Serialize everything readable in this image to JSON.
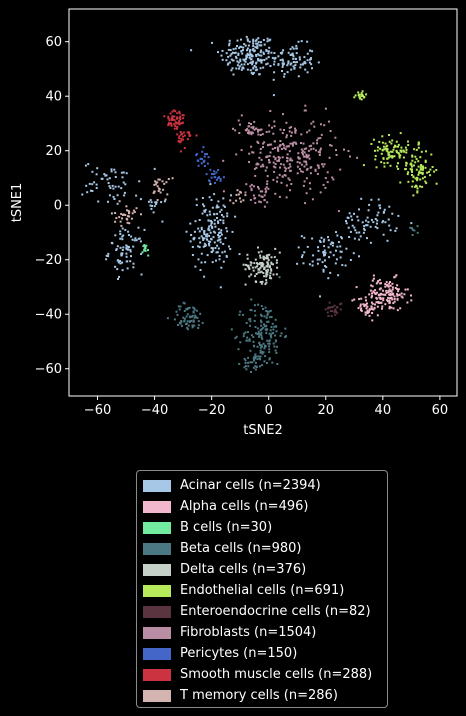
{
  "chart_data": {
    "type": "scatter",
    "title": "",
    "xlabel": "tSNE2",
    "ylabel": "tSNE1",
    "xlim": [
      -70,
      66
    ],
    "ylim": [
      -70,
      72
    ],
    "xticks": [
      -60,
      -40,
      -20,
      0,
      20,
      40,
      60
    ],
    "yticks": [
      -60,
      -40,
      -20,
      0,
      20,
      40,
      60
    ],
    "legend_position": "below plot",
    "series": [
      {
        "name": "Acinar cells (n=2394)",
        "color": "#a6c8e6",
        "clusters": [
          {
            "cx": -7,
            "cy": 55,
            "sx": 5,
            "sy": 4,
            "n": 170
          },
          {
            "cx": 8,
            "cy": 53,
            "sx": 4,
            "sy": 3,
            "n": 90
          },
          {
            "cx": -20,
            "cy": -10,
            "sx": 3.5,
            "sy": 7,
            "n": 160
          },
          {
            "cx": -50,
            "cy": -17,
            "sx": 3,
            "sy": 4,
            "n": 70
          },
          {
            "cx": -55,
            "cy": 8,
            "sx": 5,
            "sy": 4,
            "n": 55
          },
          {
            "cx": 35,
            "cy": -6,
            "sx": 5,
            "sy": 4,
            "n": 70
          },
          {
            "cx": 20,
            "cy": -18,
            "sx": 4,
            "sy": 4,
            "n": 70
          },
          {
            "cx": -40,
            "cy": 0,
            "sx": 2,
            "sy": 2,
            "n": 15
          }
        ]
      },
      {
        "name": "Alpha cells (n=496)",
        "color": "#f2b7cc",
        "clusters": [
          {
            "cx": 41,
            "cy": -33,
            "sx": 4,
            "sy": 3,
            "n": 130
          },
          {
            "cx": 34,
            "cy": -37,
            "sx": 2.5,
            "sy": 2,
            "n": 40
          }
        ]
      },
      {
        "name": "B cells (n=30)",
        "color": "#72eaa0",
        "clusters": [
          {
            "cx": -43,
            "cy": -16,
            "sx": 0.6,
            "sy": 1.2,
            "n": 12
          }
        ]
      },
      {
        "name": "Beta cells (n=980)",
        "color": "#4b7882",
        "clusters": [
          {
            "cx": -2,
            "cy": -47,
            "sx": 3.5,
            "sy": 6,
            "n": 150
          },
          {
            "cx": -28,
            "cy": -41,
            "sx": 3,
            "sy": 2.5,
            "n": 60
          },
          {
            "cx": -5,
            "cy": -58,
            "sx": 2,
            "sy": 1.5,
            "n": 30
          },
          {
            "cx": 51,
            "cy": -9,
            "sx": 1,
            "sy": 1,
            "n": 8
          }
        ]
      },
      {
        "name": "Delta cells (n=376)",
        "color": "#c4d0c8",
        "clusters": [
          {
            "cx": -2,
            "cy": -22,
            "sx": 3,
            "sy": 3,
            "n": 110
          }
        ]
      },
      {
        "name": "Endothelial cells (n=691)",
        "color": "#b6ea5a",
        "clusters": [
          {
            "cx": 43,
            "cy": 20,
            "sx": 3,
            "sy": 2.5,
            "n": 80
          },
          {
            "cx": 52,
            "cy": 13,
            "sx": 3,
            "sy": 4,
            "n": 90
          },
          {
            "cx": 32,
            "cy": 40,
            "sx": 1.2,
            "sy": 1,
            "n": 20
          }
        ]
      },
      {
        "name": "Enteroendocrine cells (n=82)",
        "color": "#5a3540",
        "clusters": [
          {
            "cx": 23,
            "cy": -38,
            "sx": 1.5,
            "sy": 1.5,
            "n": 25
          }
        ]
      },
      {
        "name": "Fibroblasts (n=1504)",
        "color": "#b98da4",
        "clusters": [
          {
            "cx": 8,
            "cy": 18,
            "sx": 8,
            "sy": 7,
            "n": 260
          },
          {
            "cx": -6,
            "cy": 28,
            "sx": 3,
            "sy": 2,
            "n": 40
          },
          {
            "cx": -4,
            "cy": 4,
            "sx": 2,
            "sy": 2,
            "n": 25
          }
        ]
      },
      {
        "name": "Pericytes (n=150)",
        "color": "#4466c8",
        "clusters": [
          {
            "cx": -23,
            "cy": 17,
            "sx": 1.2,
            "sy": 1.5,
            "n": 20
          },
          {
            "cx": -19,
            "cy": 11,
            "sx": 1.5,
            "sy": 1.2,
            "n": 20
          }
        ]
      },
      {
        "name": "Smooth muscle cells (n=288)",
        "color": "#cc3340",
        "clusters": [
          {
            "cx": -33,
            "cy": 31,
            "sx": 1.8,
            "sy": 2.5,
            "n": 55
          },
          {
            "cx": -29,
            "cy": 25,
            "sx": 1.5,
            "sy": 2,
            "n": 25
          }
        ]
      },
      {
        "name": "T memory cells (n=286)",
        "color": "#d4b4b0",
        "clusters": [
          {
            "cx": -50,
            "cy": -4,
            "sx": 2,
            "sy": 2,
            "n": 30
          },
          {
            "cx": -38,
            "cy": 7,
            "sx": 1.5,
            "sy": 2.5,
            "n": 25
          },
          {
            "cx": -10,
            "cy": 3,
            "sx": 1.5,
            "sy": 1.5,
            "n": 12
          }
        ]
      }
    ]
  }
}
